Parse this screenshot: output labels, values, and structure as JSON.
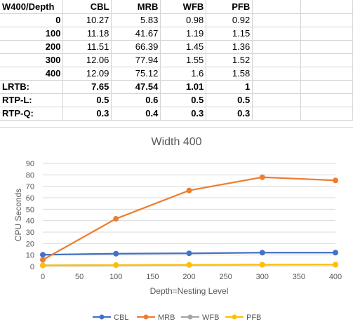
{
  "sheet": {
    "header": [
      "W400/Depth",
      "CBL",
      "MRB",
      "WFB",
      "PFB"
    ],
    "rows": [
      {
        "label": "0",
        "values": [
          "10.27",
          "5.83",
          "0.98",
          "0.92"
        ]
      },
      {
        "label": "100",
        "values": [
          "11.18",
          "41.67",
          "1.19",
          "1.15"
        ]
      },
      {
        "label": "200",
        "values": [
          "11.51",
          "66.39",
          "1.45",
          "1.36"
        ]
      },
      {
        "label": "300",
        "values": [
          "12.06",
          "77.94",
          "1.55",
          "1.52"
        ]
      },
      {
        "label": "400",
        "values": [
          "12.09",
          "75.12",
          "1.6",
          "1.58"
        ]
      }
    ],
    "summary": [
      {
        "label": "LRTB:",
        "values": [
          "7.65",
          "47.54",
          "1.01",
          "1"
        ]
      },
      {
        "label": "RTP-L:",
        "values": [
          "0.5",
          "0.6",
          "0.5",
          "0.5"
        ]
      },
      {
        "label": "RTP-Q:",
        "values": [
          "0.3",
          "0.4",
          "0.3",
          "0.3"
        ]
      }
    ]
  },
  "chart_data": {
    "type": "line",
    "title": "Width 400",
    "xlabel": "Depth=Nesting Level",
    "ylabel": "CPU Seconds",
    "x": [
      0,
      100,
      200,
      300,
      400
    ],
    "xlim": [
      0,
      400
    ],
    "ylim": [
      0,
      90
    ],
    "xticks": [
      0,
      50,
      100,
      150,
      200,
      250,
      300,
      350,
      400
    ],
    "yticks": [
      0,
      10,
      20,
      30,
      40,
      50,
      60,
      70,
      80,
      90
    ],
    "grid": true,
    "legend": "bottom",
    "series": [
      {
        "name": "CBL",
        "color": "#4472c4",
        "values": [
          10.27,
          11.18,
          11.51,
          12.06,
          12.09
        ]
      },
      {
        "name": "MRB",
        "color": "#ed7d31",
        "values": [
          5.83,
          41.67,
          66.39,
          77.94,
          75.12
        ]
      },
      {
        "name": "WFB",
        "color": "#a5a5a5",
        "values": [
          0.98,
          1.19,
          1.45,
          1.55,
          1.6
        ]
      },
      {
        "name": "PFB",
        "color": "#ffc000",
        "values": [
          0.92,
          1.15,
          1.36,
          1.52,
          1.58
        ]
      }
    ]
  }
}
